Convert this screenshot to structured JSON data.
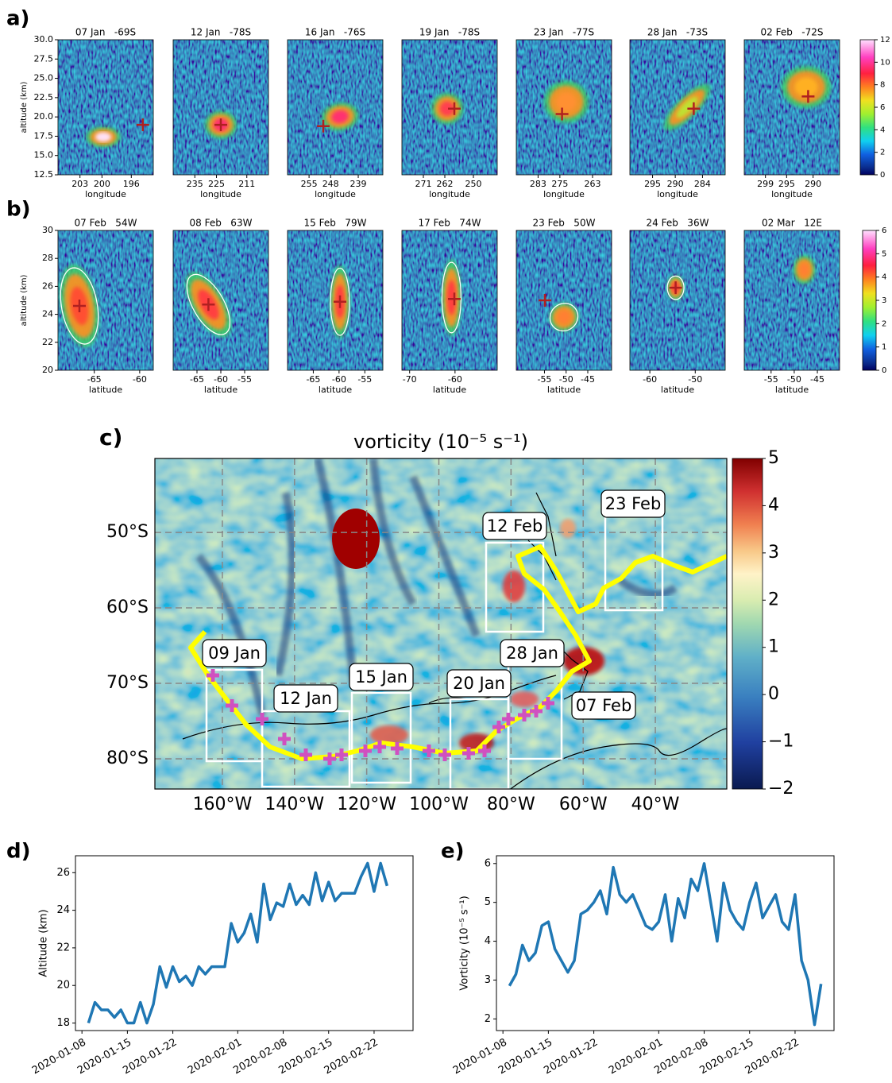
{
  "chart_data": [
    {
      "type": "profile-panels",
      "label": "a)",
      "ylabel": "altitude (km)",
      "xlabel": "longitude",
      "ylim": [
        12.5,
        30
      ],
      "yticks": [
        {
          "value": 30,
          "label": "30.0"
        },
        27.5,
        {
          "value": 25,
          "label": "25.0"
        },
        22.5,
        {
          "value": 20,
          "label": "20.0"
        },
        17.5,
        {
          "value": 15,
          "label": "15.0"
        },
        12.5
      ],
      "colorbar": {
        "ylim": [
          0,
          12
        ],
        "yticks": [
          0,
          2,
          4,
          6,
          8,
          10,
          12
        ]
      },
      "panels": [
        {
          "title": "07 Jan   -69S",
          "xlim": [
            206,
            193
          ],
          "xticks": [
            203,
            200,
            196
          ]
        },
        {
          "title": "12 Jan   -78S",
          "xlim": [
            245,
            201
          ],
          "xticks": [
            235,
            225,
            211
          ]
        },
        {
          "title": "16 Jan   -76S",
          "xlim": [
            262,
            231
          ],
          "xticks": [
            255,
            248,
            239
          ]
        },
        {
          "title": "19 Jan   -78S",
          "xlim": [
            280,
            240
          ],
          "xticks": [
            271,
            262,
            250
          ]
        },
        {
          "title": "23 Jan   -77S",
          "xlim": [
            291,
            256
          ],
          "xticks": [
            283,
            275,
            263
          ]
        },
        {
          "title": "28 Jan   -73S",
          "xlim": [
            300,
            279
          ],
          "xticks": [
            295,
            290,
            284
          ]
        },
        {
          "title": "02 Feb   -72S",
          "xlim": [
            303,
            285
          ],
          "xticks": [
            299,
            295,
            290
          ]
        }
      ]
    },
    {
      "type": "profile-panels",
      "label": "b)",
      "ylabel": "altitude (km)",
      "xlabel": "latitude",
      "ylim": [
        20,
        30
      ],
      "yticks": [
        20,
        22,
        24,
        26,
        28,
        30
      ],
      "colorbar": {
        "ylim": [
          0,
          6
        ],
        "yticks": [
          0,
          1,
          2,
          3,
          4,
          5,
          6
        ]
      },
      "panels": [
        {
          "title": "07 Feb   54W",
          "xlim": [
            -69,
            -58.5
          ],
          "xticks": [
            -65,
            -60
          ]
        },
        {
          "title": "08 Feb   63W",
          "xlim": [
            -70,
            -50
          ],
          "xticks": [
            -65,
            -60,
            -55
          ]
        },
        {
          "title": "15 Feb   79W",
          "xlim": [
            -70,
            -51.5
          ],
          "xticks": [
            -65,
            -60,
            -55
          ]
        },
        {
          "title": "17 Feb   74W",
          "xlim": [
            -71.7,
            -50.7
          ],
          "xticks": [
            -70,
            -60
          ]
        },
        {
          "title": "23 Feb   50W",
          "xlim": [
            -61.5,
            -39.5
          ],
          "xticks": [
            -55,
            -50,
            -45
          ]
        },
        {
          "title": "24 Feb   36W",
          "xlim": [
            -64.4,
            -43.4
          ],
          "xticks": [
            -60,
            -50
          ]
        },
        {
          "title": "02 Mar   12E",
          "xlim": [
            -60.8,
            -40.2
          ],
          "xticks": [
            -55,
            -50,
            -45
          ]
        }
      ]
    },
    {
      "type": "map",
      "label": "c)",
      "title": "vorticity (10⁻⁵ s⁻¹)",
      "xlim": [
        -178.7,
        -20.2
      ],
      "ylim": [
        -84,
        -40.2
      ],
      "xticks": [
        {
          "value": -160,
          "label": "160°W"
        },
        {
          "value": -140,
          "label": "140°W"
        },
        {
          "value": -120,
          "label": "120°W"
        },
        {
          "value": -100,
          "label": "100°W"
        },
        {
          "value": -80,
          "label": "80°W"
        },
        {
          "value": -60,
          "label": "60°W"
        },
        {
          "value": -40,
          "label": "40°W"
        }
      ],
      "yticks": [
        {
          "value": -50,
          "label": "50°S"
        },
        {
          "value": -60,
          "label": "60°S"
        },
        {
          "value": -70,
          "label": "70°S"
        },
        {
          "value": -80,
          "label": "80°S"
        }
      ],
      "grid": true,
      "colorbar": {
        "ylim": [
          -2,
          5
        ],
        "yticks": [
          {
            "value": -2,
            "label": "−2"
          },
          {
            "value": -1,
            "label": "−1"
          },
          0,
          1,
          2,
          3,
          4,
          5
        ]
      },
      "annotations": [
        "09 Jan",
        "12 Jan",
        "15 Jan",
        "20 Jan",
        "28 Jan",
        "07 Feb",
        "12 Feb",
        "23 Feb"
      ]
    },
    {
      "type": "line",
      "label": "d)",
      "ylabel": "Altitude (km)",
      "color": "#1f77b4",
      "x": [
        "2020-01-09",
        "2020-01-10",
        "2020-01-11",
        "2020-01-12",
        "2020-01-13",
        "2020-01-14",
        "2020-01-15",
        "2020-01-16",
        "2020-01-17",
        "2020-01-18",
        "2020-01-19",
        "2020-01-20",
        "2020-01-21",
        "2020-01-22",
        "2020-01-23",
        "2020-01-24",
        "2020-01-25",
        "2020-01-26",
        "2020-01-27",
        "2020-01-28",
        "2020-01-29",
        "2020-01-30",
        "2020-01-31",
        "2020-02-01",
        "2020-02-02",
        "2020-02-03",
        "2020-02-04",
        "2020-02-05",
        "2020-02-06",
        "2020-02-07",
        "2020-02-08",
        "2020-02-09",
        "2020-02-10",
        "2020-02-11",
        "2020-02-12",
        "2020-02-13",
        "2020-02-14",
        "2020-02-15",
        "2020-02-16",
        "2020-02-17",
        "2020-02-18",
        "2020-02-19",
        "2020-02-20",
        "2020-02-21",
        "2020-02-22",
        "2020-02-23",
        "2020-02-24"
      ],
      "values": [
        18.0,
        19.1,
        18.7,
        18.7,
        18.3,
        18.7,
        18.0,
        18.0,
        19.1,
        18.0,
        19.0,
        21.0,
        19.9,
        21.0,
        20.2,
        20.5,
        20.0,
        21.0,
        20.6,
        21.0,
        21.0,
        21.0,
        23.3,
        22.3,
        22.8,
        23.8,
        22.3,
        25.4,
        23.5,
        24.4,
        24.2,
        25.4,
        24.3,
        24.8,
        24.3,
        26.0,
        24.5,
        25.5,
        24.5,
        24.9,
        24.9,
        24.9,
        25.8,
        26.5,
        25.0,
        26.5,
        25.3
      ],
      "xlim": [
        "2020-01-07",
        "2020-02-28"
      ],
      "xticks": [
        "2020-01-08",
        "2020-01-15",
        "2020-01-22",
        "2020-02-01",
        "2020-02-08",
        "2020-02-15",
        "2020-02-22"
      ],
      "ylim": [
        17.6,
        26.9
      ],
      "yticks": [
        18,
        20,
        22,
        24,
        26
      ]
    },
    {
      "type": "line",
      "label": "e)",
      "ylabel": "Vorticity (10⁻⁵ s⁻¹)",
      "color": "#1f77b4",
      "x": [
        "2020-01-09",
        "2020-01-10",
        "2020-01-11",
        "2020-01-12",
        "2020-01-13",
        "2020-01-14",
        "2020-01-15",
        "2020-01-16",
        "2020-01-17",
        "2020-01-18",
        "2020-01-19",
        "2020-01-20",
        "2020-01-21",
        "2020-01-22",
        "2020-01-23",
        "2020-01-24",
        "2020-01-25",
        "2020-01-26",
        "2020-01-27",
        "2020-01-28",
        "2020-01-29",
        "2020-01-30",
        "2020-01-31",
        "2020-02-01",
        "2020-02-02",
        "2020-02-03",
        "2020-02-04",
        "2020-02-05",
        "2020-02-06",
        "2020-02-07",
        "2020-02-08",
        "2020-02-09",
        "2020-02-10",
        "2020-02-11",
        "2020-02-12",
        "2020-02-13",
        "2020-02-14",
        "2020-02-15",
        "2020-02-16",
        "2020-02-17",
        "2020-02-18",
        "2020-02-19",
        "2020-02-20",
        "2020-02-21",
        "2020-02-22",
        "2020-02-23",
        "2020-02-24",
        "2020-02-25",
        "2020-02-26"
      ],
      "values": [
        2.85,
        3.15,
        3.9,
        3.5,
        3.7,
        4.4,
        4.5,
        3.8,
        3.5,
        3.2,
        3.5,
        4.7,
        4.8,
        5.0,
        5.3,
        4.7,
        5.9,
        5.2,
        5.0,
        5.2,
        4.8,
        4.4,
        4.3,
        4.5,
        5.2,
        4.0,
        5.1,
        4.6,
        5.6,
        5.3,
        6.0,
        5.0,
        4.0,
        5.5,
        4.8,
        4.5,
        4.3,
        5.0,
        5.5,
        4.6,
        4.9,
        5.2,
        4.5,
        4.3,
        5.2,
        3.5,
        3.0,
        1.85,
        2.9
      ],
      "xlim": [
        "2020-01-07",
        "2020-02-28"
      ],
      "xticks": [
        "2020-01-08",
        "2020-01-15",
        "2020-01-22",
        "2020-02-01",
        "2020-02-08",
        "2020-02-15",
        "2020-02-22"
      ],
      "ylim": [
        1.7,
        6.2
      ],
      "yticks": [
        2,
        3,
        4,
        5,
        6
      ]
    }
  ]
}
